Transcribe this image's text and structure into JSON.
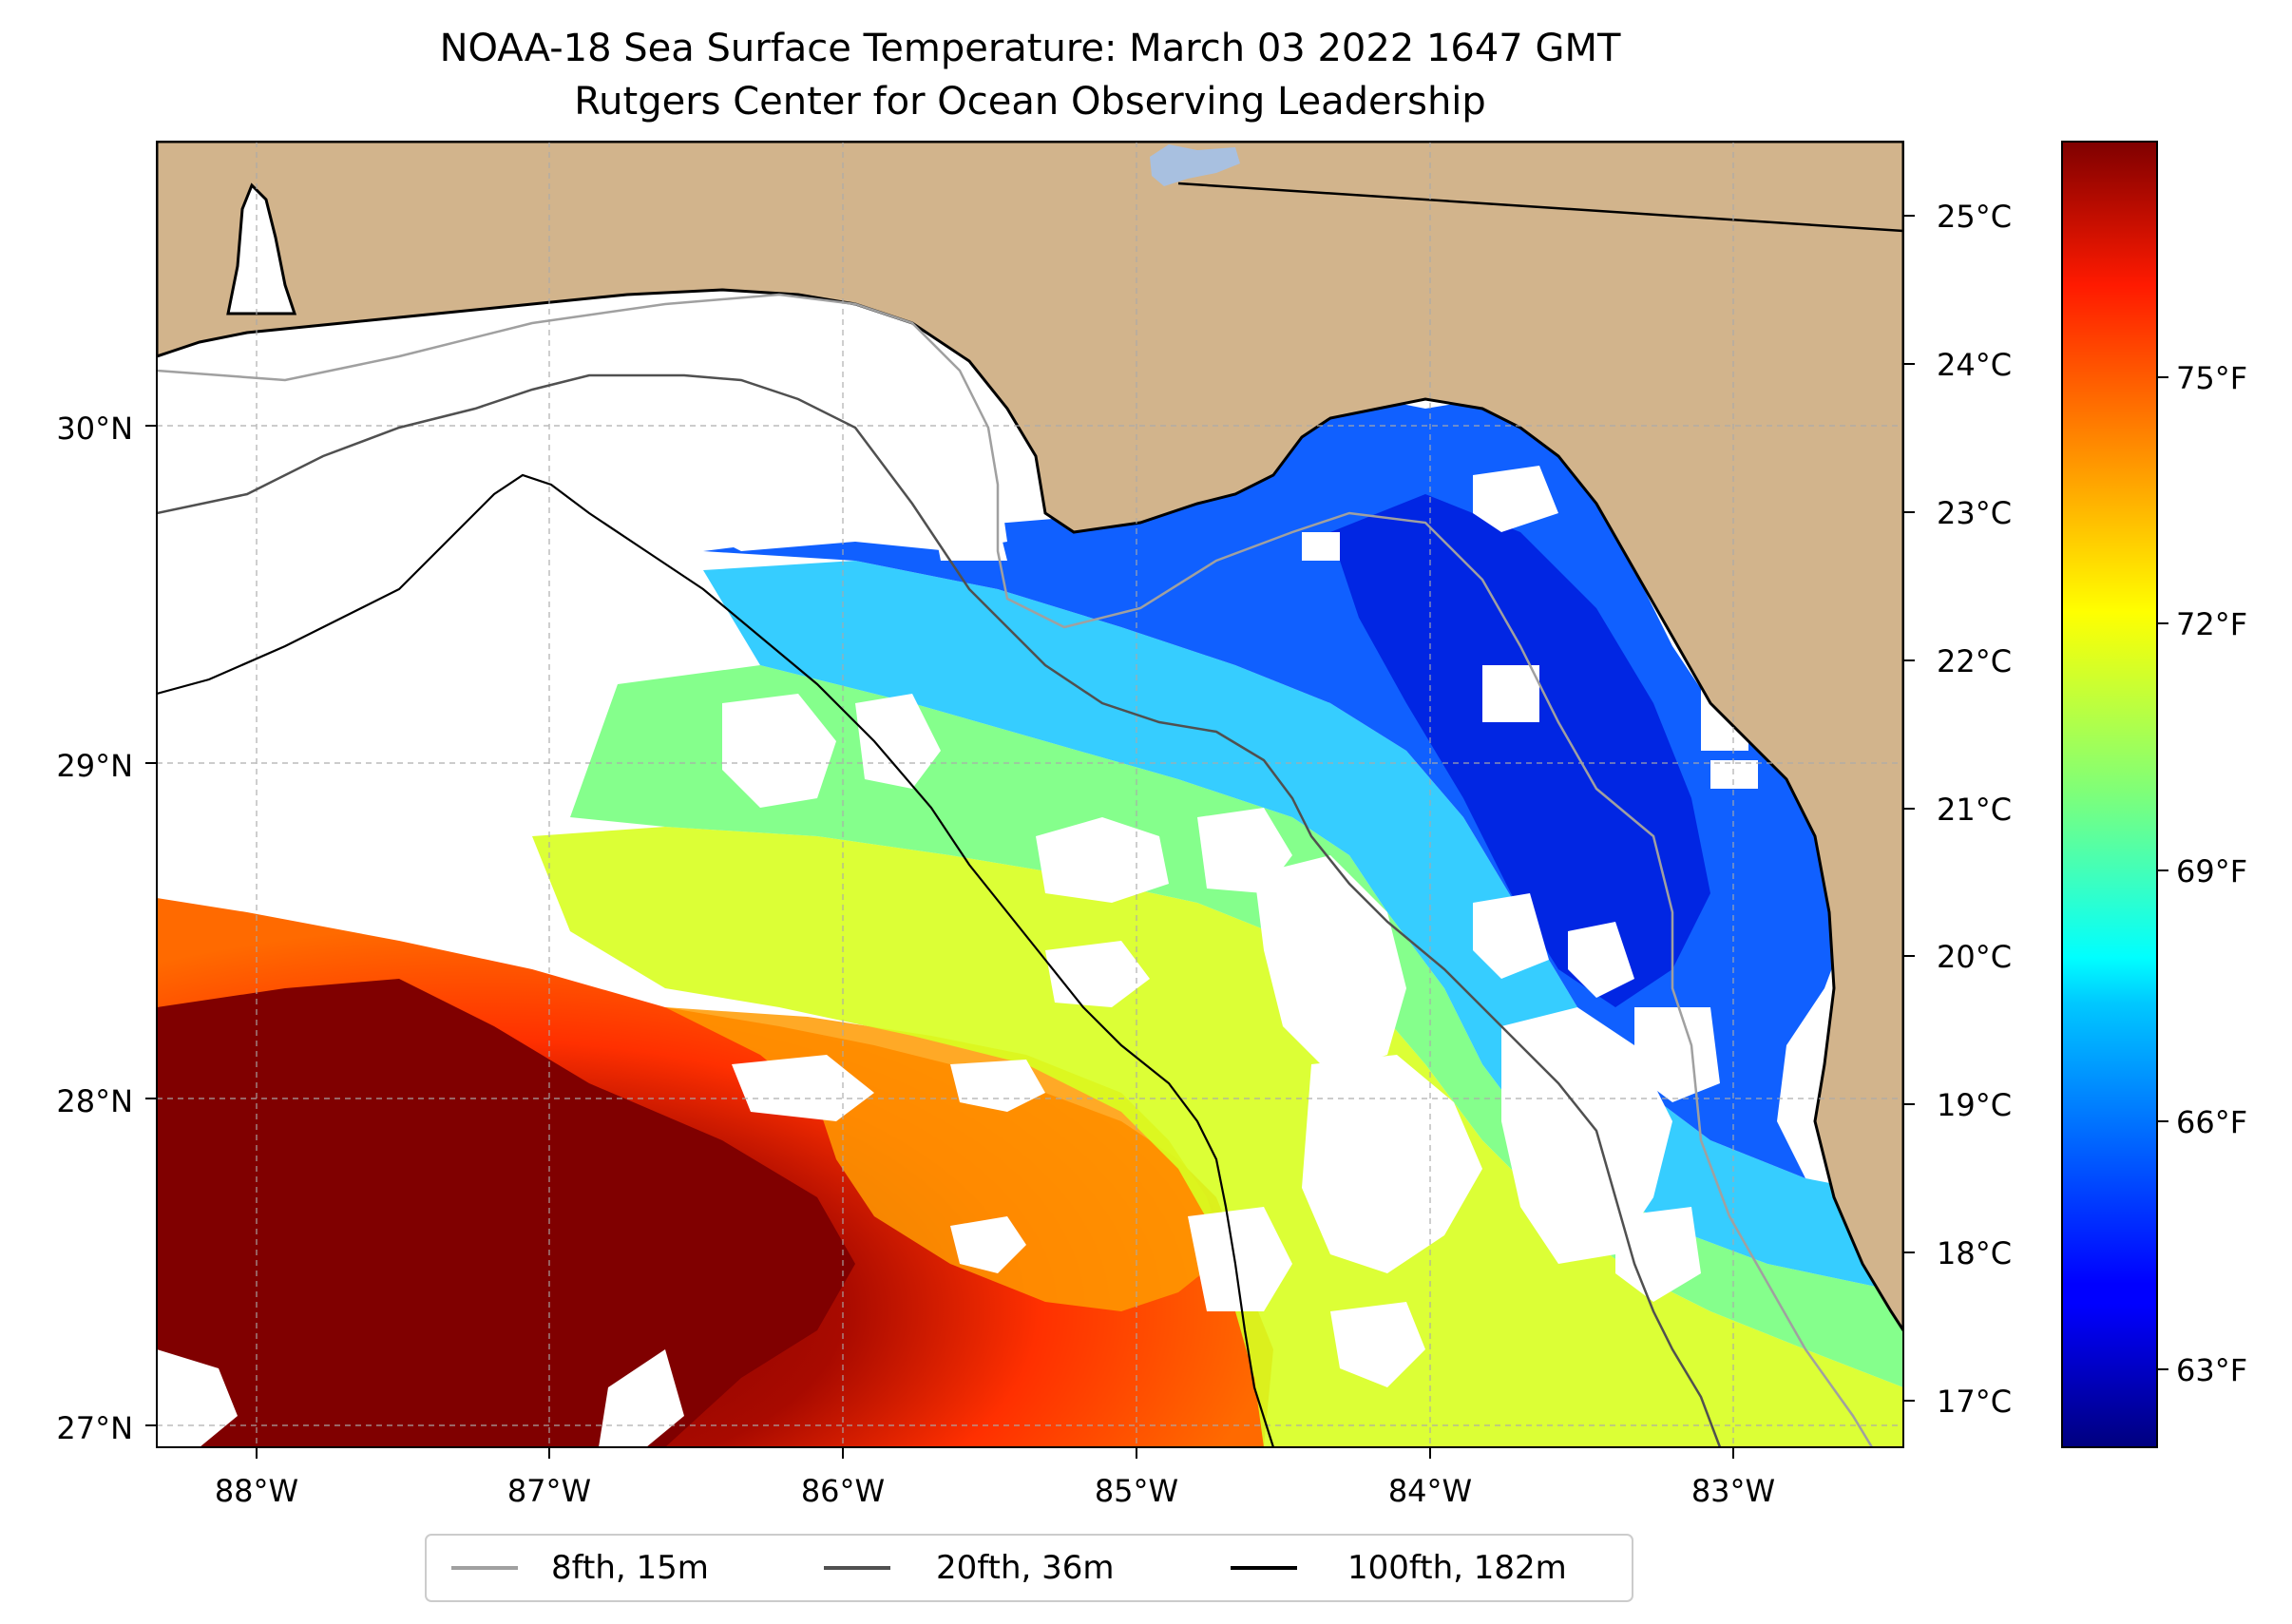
{
  "title": {
    "line1": "NOAA-18 Sea Surface Temperature: March 03 2022 1647 GMT",
    "line2": "Rutgers Center for Ocean Observing Leadership"
  },
  "map": {
    "type": "satellite sea surface temperature map",
    "lon_range": [
      -88.32,
      -82.35
    ],
    "lat_range": [
      26.93,
      30.84
    ],
    "land_color": "#d2b48c",
    "nodata_color": "#ffffff",
    "lat_ticks": [
      {
        "value": 30,
        "label": "30°N"
      },
      {
        "value": 29,
        "label": "29°N"
      },
      {
        "value": 28,
        "label": "28°N"
      },
      {
        "value": 27,
        "label": "27°N"
      }
    ],
    "lon_ticks": [
      {
        "value": -88,
        "label": "88°W"
      },
      {
        "value": -87,
        "label": "87°W"
      },
      {
        "value": -86,
        "label": "86°W"
      },
      {
        "value": -85,
        "label": "85°W"
      },
      {
        "value": -84,
        "label": "84°W"
      },
      {
        "value": -83,
        "label": "83°W"
      }
    ],
    "grid": true
  },
  "legend": {
    "items": [
      {
        "label": "8fth, 15m",
        "color": "#a0a0a0"
      },
      {
        "label": "20fth, 36m",
        "color": "#505050"
      },
      {
        "label": "100fth, 182m",
        "color": "#000000"
      }
    ]
  },
  "colorbar": {
    "colormap": "jet",
    "celsius_range": [
      16.7,
      25.5
    ],
    "celsius_labels": [
      {
        "value": 25,
        "label": "25°C"
      },
      {
        "value": 24,
        "label": "24°C"
      },
      {
        "value": 23,
        "label": "23°C"
      },
      {
        "value": 22,
        "label": "22°C"
      },
      {
        "value": 21,
        "label": "21°C"
      },
      {
        "value": 20,
        "label": "20°C"
      },
      {
        "value": 19,
        "label": "19°C"
      },
      {
        "value": 18,
        "label": "18°C"
      },
      {
        "value": 17,
        "label": "17°C"
      }
    ],
    "fahrenheit_labels": [
      {
        "value": 75,
        "label": "75°F"
      },
      {
        "value": 72,
        "label": "72°F"
      },
      {
        "value": 69,
        "label": "69°F"
      },
      {
        "value": 66,
        "label": "66°F"
      },
      {
        "value": 63,
        "label": "63°F"
      }
    ]
  }
}
